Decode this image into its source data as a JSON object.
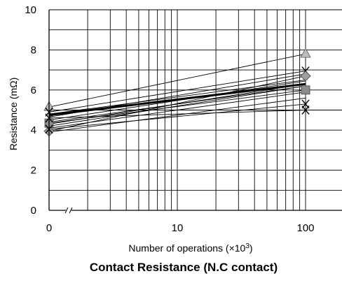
{
  "chart_data": {
    "type": "line",
    "title": "Contact Resistance (N.C contact)",
    "xlabel": "Number of operations (×10",
    "xlabel_sup": "3",
    "xlabel_tail": ")",
    "ylabel": "Resistance  (mΩ)",
    "x_scale": "log",
    "x_ticks": [
      {
        "value": 0,
        "label": "0"
      },
      {
        "value": 10,
        "label": "10"
      },
      {
        "value": 100,
        "label": "100"
      }
    ],
    "y_ticks": [
      {
        "value": 0,
        "label": "0"
      },
      {
        "value": 2,
        "label": "2"
      },
      {
        "value": 4,
        "label": "4"
      },
      {
        "value": 6,
        "label": "6"
      },
      {
        "value": 8,
        "label": "8"
      },
      {
        "value": 10,
        "label": "10"
      }
    ],
    "ylim": [
      0,
      10
    ],
    "x_points": [
      0,
      100
    ],
    "axis_break": true,
    "grid": true,
    "series": [
      {
        "values": [
          5.15,
          7.8
        ],
        "marker": "triangle",
        "color": "#bdbdbd"
      },
      {
        "values": [
          4.9,
          6.95
        ],
        "marker": "cross",
        "color": "#000000"
      },
      {
        "values": [
          4.65,
          6.8
        ],
        "marker": "none",
        "color": "#000000"
      },
      {
        "values": [
          3.95,
          6.7
        ],
        "marker": "diamond",
        "color": "#9e9e9e"
      },
      {
        "values": [
          4.8,
          6.5
        ],
        "marker": "none",
        "color": "#000000"
      },
      {
        "values": [
          4.5,
          6.45
        ],
        "marker": "none",
        "color": "#000000"
      },
      {
        "values": [
          4.75,
          6.3
        ],
        "marker": "none",
        "color": "#000000",
        "bold": true
      },
      {
        "values": [
          4.3,
          6.3
        ],
        "marker": "none",
        "color": "#000000"
      },
      {
        "values": [
          4.4,
          6.2
        ],
        "marker": "none",
        "color": "#000000"
      },
      {
        "values": [
          4.2,
          6.2
        ],
        "marker": "none",
        "color": "#000000"
      },
      {
        "values": [
          4.35,
          6.0
        ],
        "marker": "square",
        "color": "#8c8c8c"
      },
      {
        "values": [
          4.1,
          5.9
        ],
        "marker": "none",
        "color": "#000000"
      },
      {
        "values": [
          3.9,
          5.6
        ],
        "marker": "none",
        "color": "#000000"
      },
      {
        "values": [
          4.05,
          5.3
        ],
        "marker": "cross",
        "color": "#000000"
      },
      {
        "values": [
          4.6,
          5.0
        ],
        "marker": "cross",
        "color": "#000000"
      }
    ]
  }
}
